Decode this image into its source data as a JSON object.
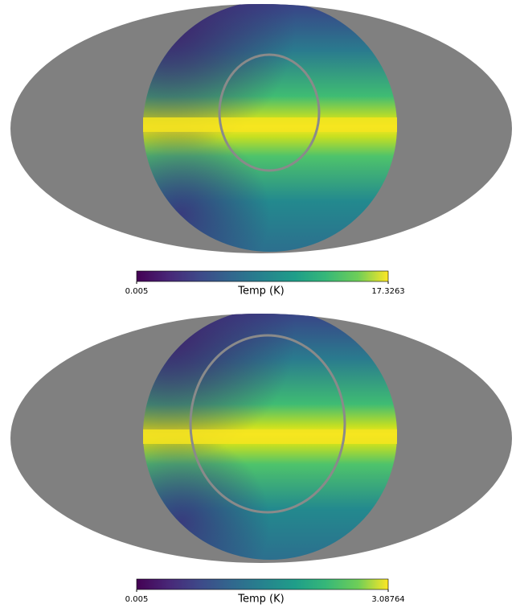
{
  "chart_data": [
    {
      "type": "map",
      "projection": "mollweide",
      "colormap": "viridis",
      "colorbar_label": "Temp (K)",
      "clim": [
        0.005,
        17.3263
      ],
      "cticks": [
        0.005,
        17.3263
      ]
    },
    {
      "type": "map",
      "projection": "mollweide",
      "colormap": "viridis",
      "colorbar_label": "Temp (K)",
      "clim": [
        0.005,
        3.08764
      ],
      "cticks": [
        0.005,
        3.08764
      ]
    }
  ]
}
